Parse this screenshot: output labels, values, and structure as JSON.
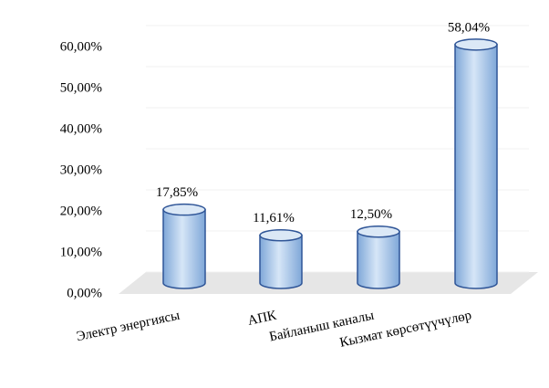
{
  "chart_data": {
    "type": "cylinder",
    "categories": [
      "Электр энергиясы",
      "АПК",
      "Байланыш каналы",
      "Кызмат көрсөтүүчүлөр"
    ],
    "values": [
      17.85,
      11.61,
      12.5,
      58.04
    ],
    "value_labels": [
      "17,85%",
      "11,61%",
      "12,50%",
      "58,04%"
    ],
    "color": "#9dc3e6",
    "ylim": [
      0,
      60
    ],
    "yticks": [
      {
        "value": 0,
        "label": "0,00%"
      },
      {
        "value": 10,
        "label": "10,00%"
      },
      {
        "value": 20,
        "label": "20,00%"
      },
      {
        "value": 30,
        "label": "30,00%"
      },
      {
        "value": 40,
        "label": "40,00%"
      },
      {
        "value": 50,
        "label": "50,00%"
      },
      {
        "value": 60,
        "label": "60,00%"
      }
    ],
    "grid": true
  }
}
